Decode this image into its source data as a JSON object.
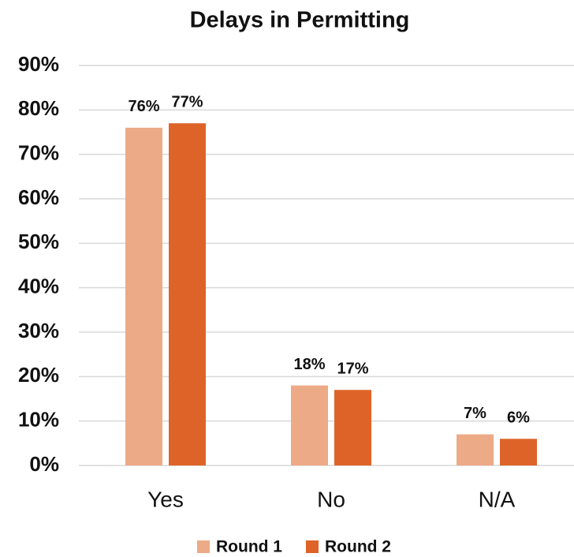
{
  "chart_data": {
    "type": "bar",
    "title": "Delays in Permitting",
    "categories": [
      "Yes",
      "No",
      "N/A"
    ],
    "series": [
      {
        "name": "Round 1",
        "color": "#EDAA86",
        "values": [
          76,
          18,
          7
        ],
        "value_labels": [
          "76%",
          "18%",
          "7%"
        ]
      },
      {
        "name": "Round 2",
        "color": "#DE6329",
        "values": [
          77,
          17,
          6
        ],
        "value_labels": [
          "77%",
          "17%",
          "6%"
        ]
      }
    ],
    "ylim": [
      0,
      90
    ],
    "yticks": [
      {
        "value": 0,
        "label": "0%"
      },
      {
        "value": 10,
        "label": "10%"
      },
      {
        "value": 20,
        "label": "20%"
      },
      {
        "value": 30,
        "label": "30%"
      },
      {
        "value": 40,
        "label": "40%"
      },
      {
        "value": 50,
        "label": "50%"
      },
      {
        "value": 60,
        "label": "60%"
      },
      {
        "value": 70,
        "label": "70%"
      },
      {
        "value": 80,
        "label": "80%"
      },
      {
        "value": 90,
        "label": "90%"
      }
    ],
    "grid": true,
    "legend": "bottom"
  }
}
